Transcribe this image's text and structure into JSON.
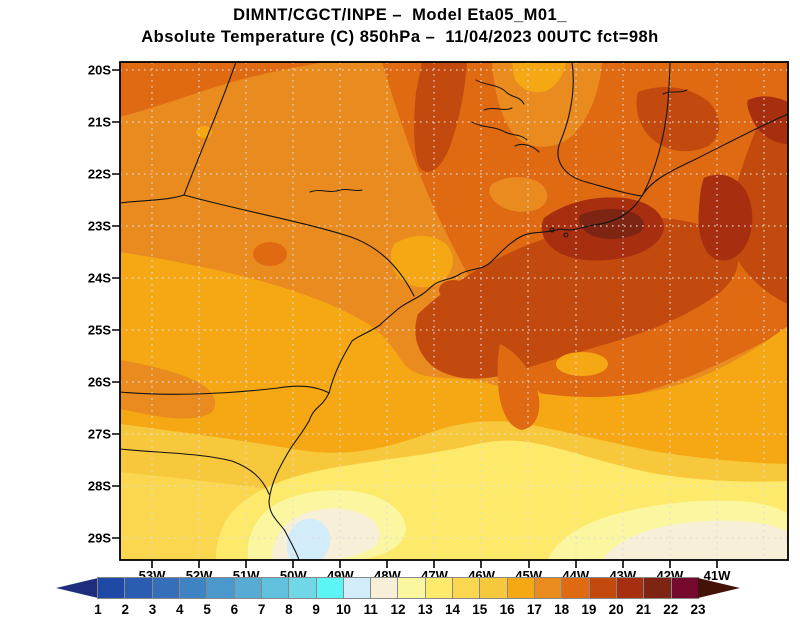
{
  "title": {
    "line1": "DIMNT/CGCT/INPE –  Model Eta05_M01_",
    "line2": "Absolute Temperature (C) 850hPa –  11/04/2023 00UTC fct=98h"
  },
  "chart_data": {
    "type": "heatmap",
    "subtype": "filled-contour-weather-map",
    "title": "DIMNT/CGCT/INPE –  Model Eta05_M01_",
    "subtitle": "Absolute Temperature (C) 850hPa –  11/04/2023 00UTC fct=98h",
    "institution": "DIMNT/CGCT/INPE",
    "model": "Eta05_M01_",
    "variable": "Absolute Temperature (C)",
    "level": "850hPa",
    "valid": "11/04/2023 00UTC",
    "forecast_hour": "fct=98h",
    "x_ticks": [
      "53W",
      "52W",
      "51W",
      "50W",
      "49W",
      "48W",
      "47W",
      "46W",
      "45W",
      "44W",
      "43W",
      "42W",
      "41W"
    ],
    "y_ticks": [
      "20S",
      "21S",
      "22S",
      "23S",
      "24S",
      "25S",
      "26S",
      "27S",
      "28S",
      "29S"
    ],
    "grid": true,
    "legend_position": "bottom",
    "colorbar": {
      "unit": "C",
      "labels": [
        "1",
        "2",
        "3",
        "4",
        "5",
        "6",
        "7",
        "8",
        "9",
        "10",
        "11",
        "12",
        "13",
        "14",
        "15",
        "16",
        "17",
        "18",
        "19",
        "20",
        "21",
        "22",
        "23"
      ],
      "colors": [
        "#1f2d7e",
        "#1e4aa5",
        "#2a5cb0",
        "#356fba",
        "#3f83c3",
        "#4a98cc",
        "#56acd5",
        "#62c1dd",
        "#6fd7e6",
        "#5cf5f5",
        "#d2ecfa",
        "#f8efd9",
        "#fbf7a0",
        "#fde96a",
        "#fad74e",
        "#f7c83b",
        "#f5a813",
        "#e98b1e",
        "#df6a12",
        "#c24a0e",
        "#a82e10",
        "#7e2413",
        "#75082e",
        "#451209"
      ]
    },
    "field_summary": {
      "dominant_band": "17-18 C orange over center and north",
      "warm_maximum": "21-22 C dark red core near 44W-43W / 23S-23.5S, warm band along northeast",
      "cool_minimum": "10-11 C pale blue patch near 50W / 29S at the south coast",
      "gradient": "values decrease southward through 16,15,14,13,12 bands"
    },
    "map_lines": [
      "state borders",
      "coastline",
      "rivers and reservoirs"
    ],
    "grid_color": "#dcdcdc",
    "frame_color": "#000000"
  }
}
